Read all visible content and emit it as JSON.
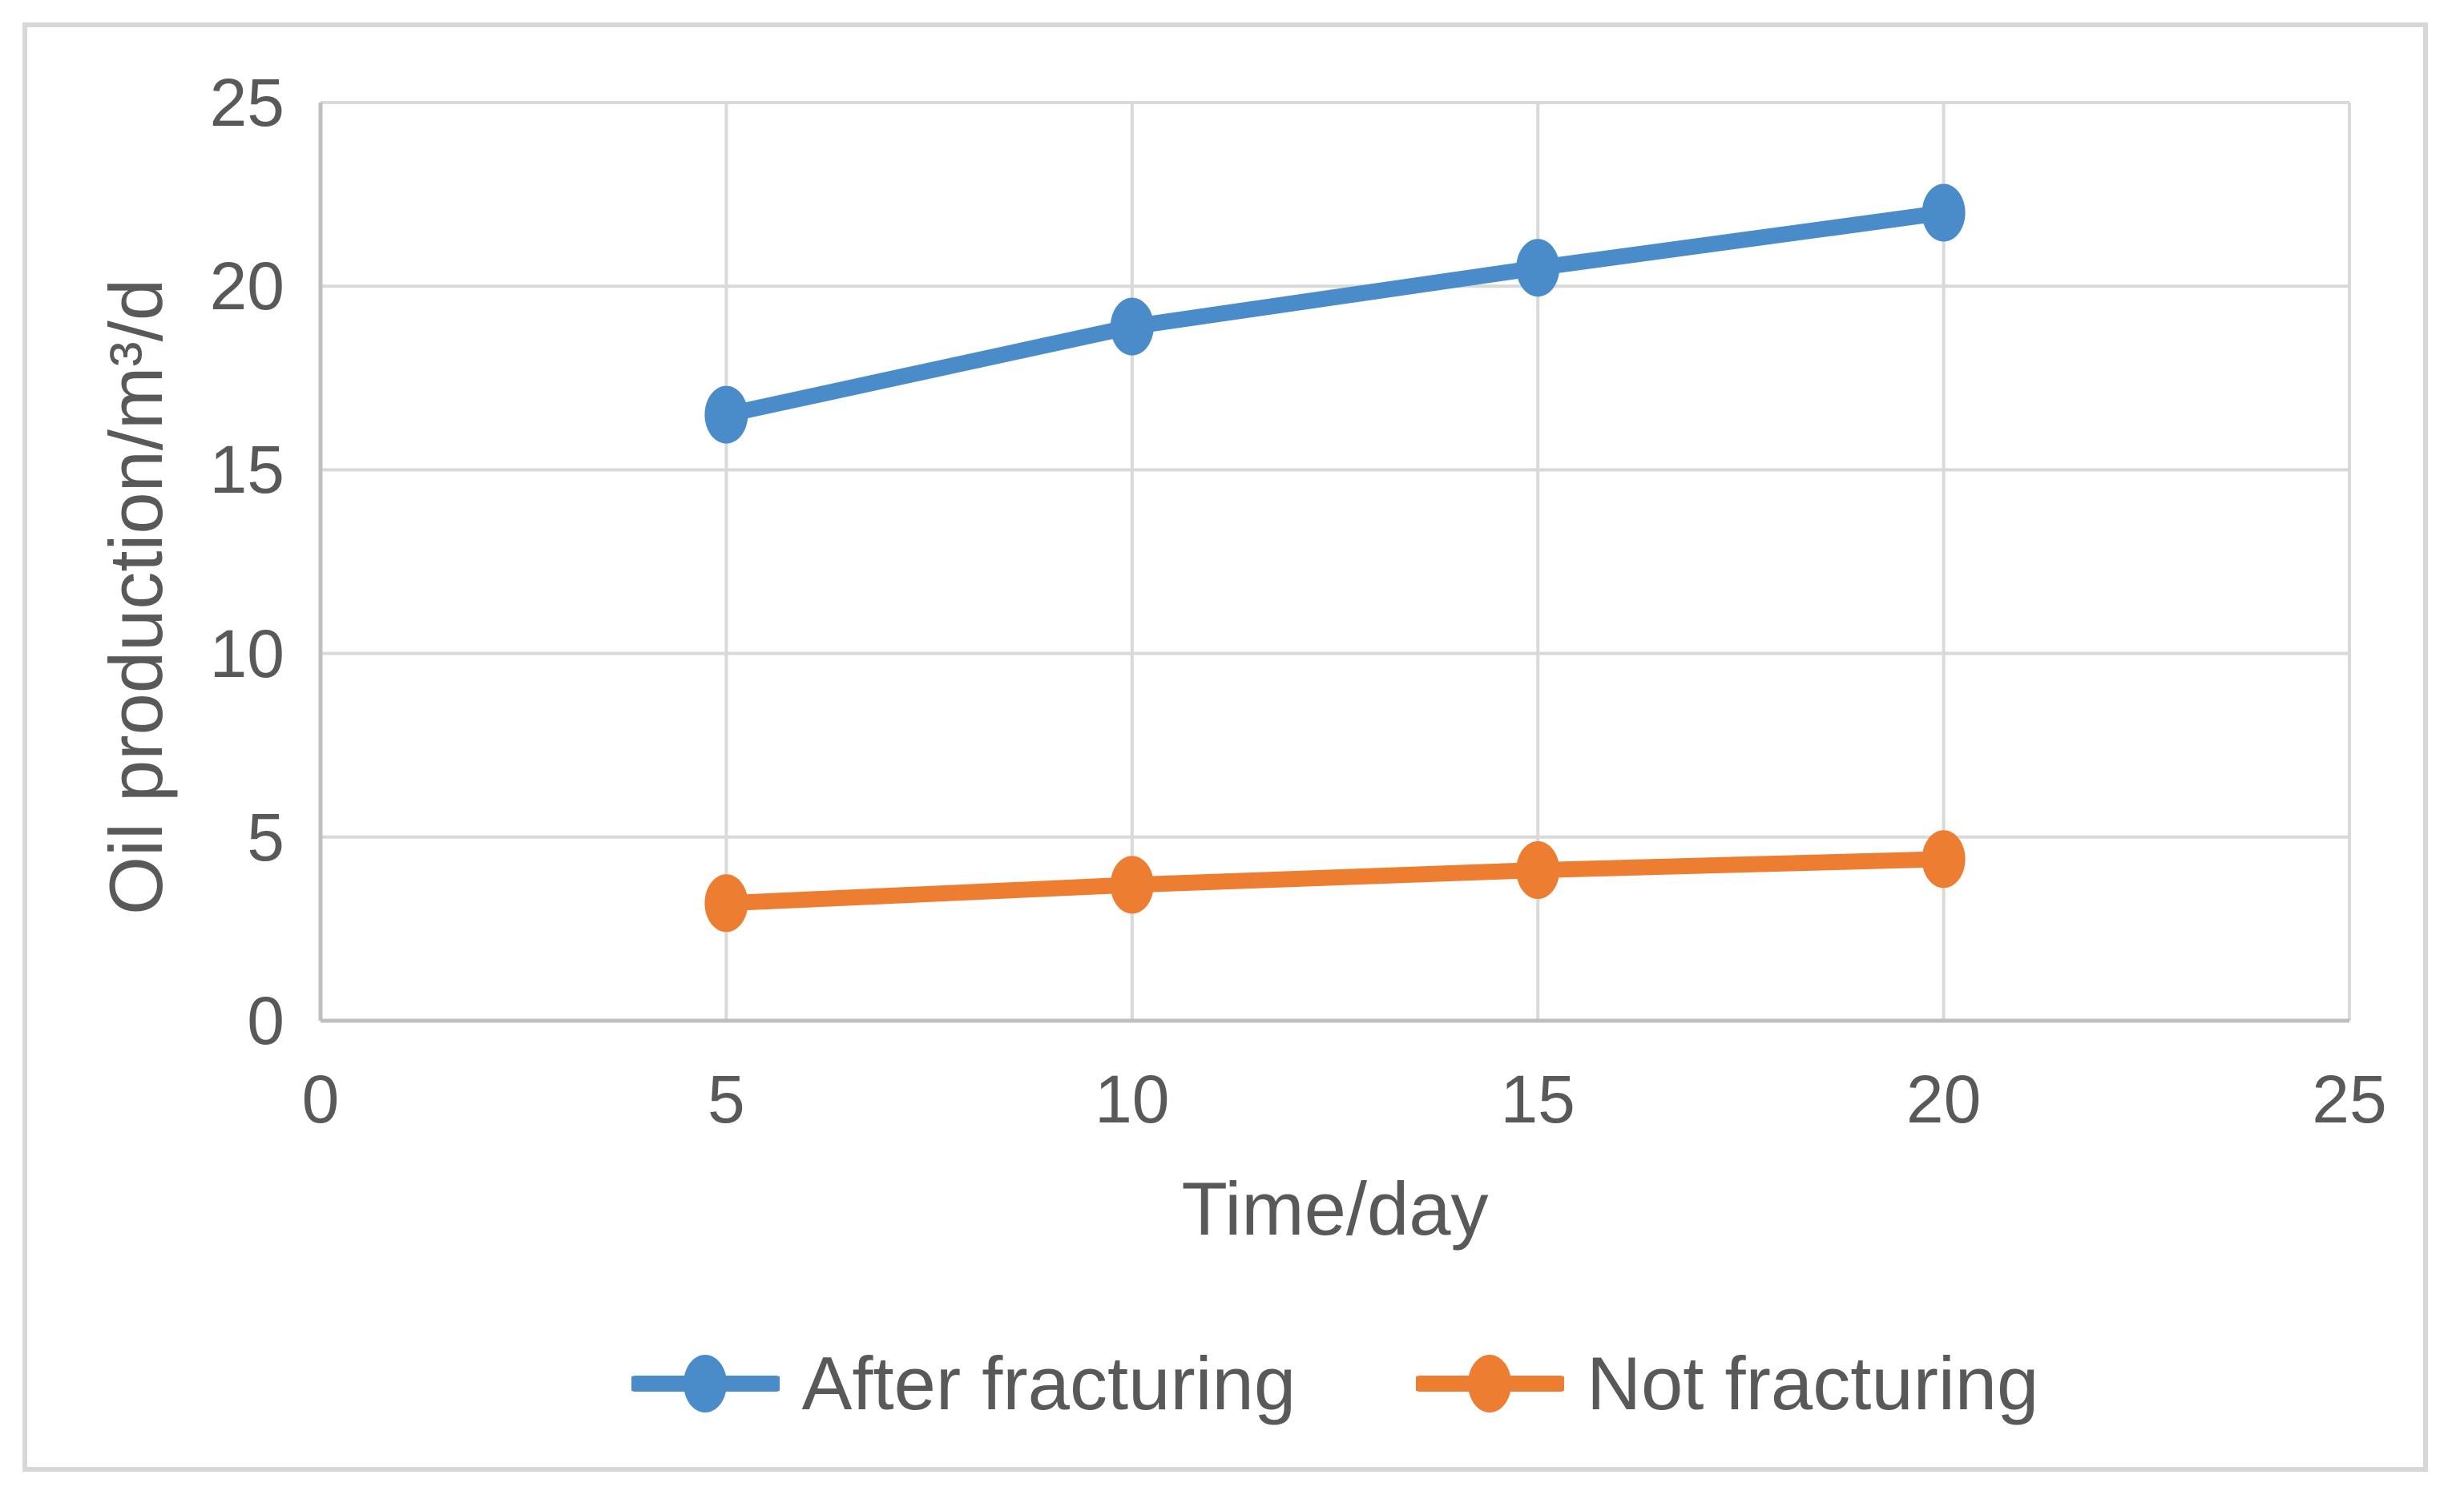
{
  "figure": {
    "background_color": "#ffffff",
    "frame_border_color": "#d7d7d9"
  },
  "chart_data": {
    "type": "line",
    "title": "",
    "xlabel": "Time/day",
    "ylabel": "Oil production/m³/d",
    "xlim": [
      0,
      25
    ],
    "ylim": [
      0,
      25
    ],
    "x_ticks": [
      0,
      5,
      10,
      15,
      20,
      25
    ],
    "y_ticks": [
      0,
      5,
      10,
      15,
      20,
      25
    ],
    "grid": true,
    "legend_position": "bottom-center",
    "series": [
      {
        "name": "After fracturing",
        "color": "#4a8bc9",
        "marker": "circle",
        "x": [
          5,
          10,
          15,
          20
        ],
        "values": [
          16.5,
          18.9,
          20.5,
          22.0
        ]
      },
      {
        "name": "Not fracturing",
        "color": "#ed7d31",
        "marker": "circle",
        "x": [
          5,
          10,
          15,
          20
        ],
        "values": [
          3.2,
          3.7,
          4.1,
          4.4
        ]
      }
    ],
    "style": {
      "gridline_color": "#d9d9d9",
      "axis_line_color": "#bfbfbf",
      "tick_label_color": "#595959",
      "axis_title_color": "#595959",
      "legend_text_color": "#595959"
    }
  }
}
